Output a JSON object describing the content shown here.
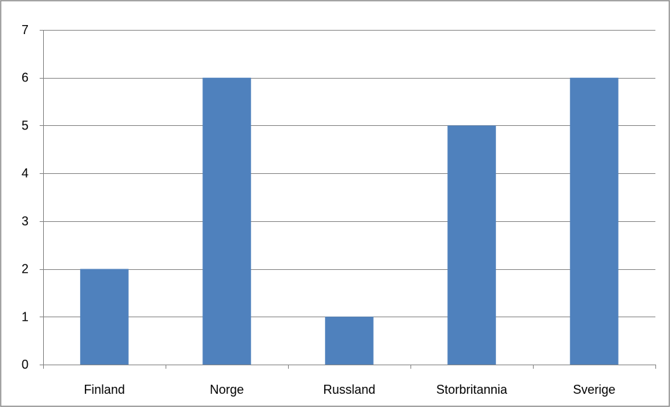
{
  "chart_data": {
    "type": "bar",
    "categories": [
      "Finland",
      "Norge",
      "Russland",
      "Storbritannia",
      "Sverige"
    ],
    "values": [
      2,
      6,
      1,
      5,
      6
    ],
    "ylim": [
      0,
      7
    ],
    "yticks": [
      "0",
      "1",
      "2",
      "3",
      "4",
      "5",
      "6",
      "7"
    ],
    "grid": true,
    "legend": "none",
    "title": "",
    "xlabel": "",
    "ylabel": "",
    "colors": {
      "bar": "#4F81BD",
      "grid": "#868686",
      "frame": "#868686"
    }
  }
}
